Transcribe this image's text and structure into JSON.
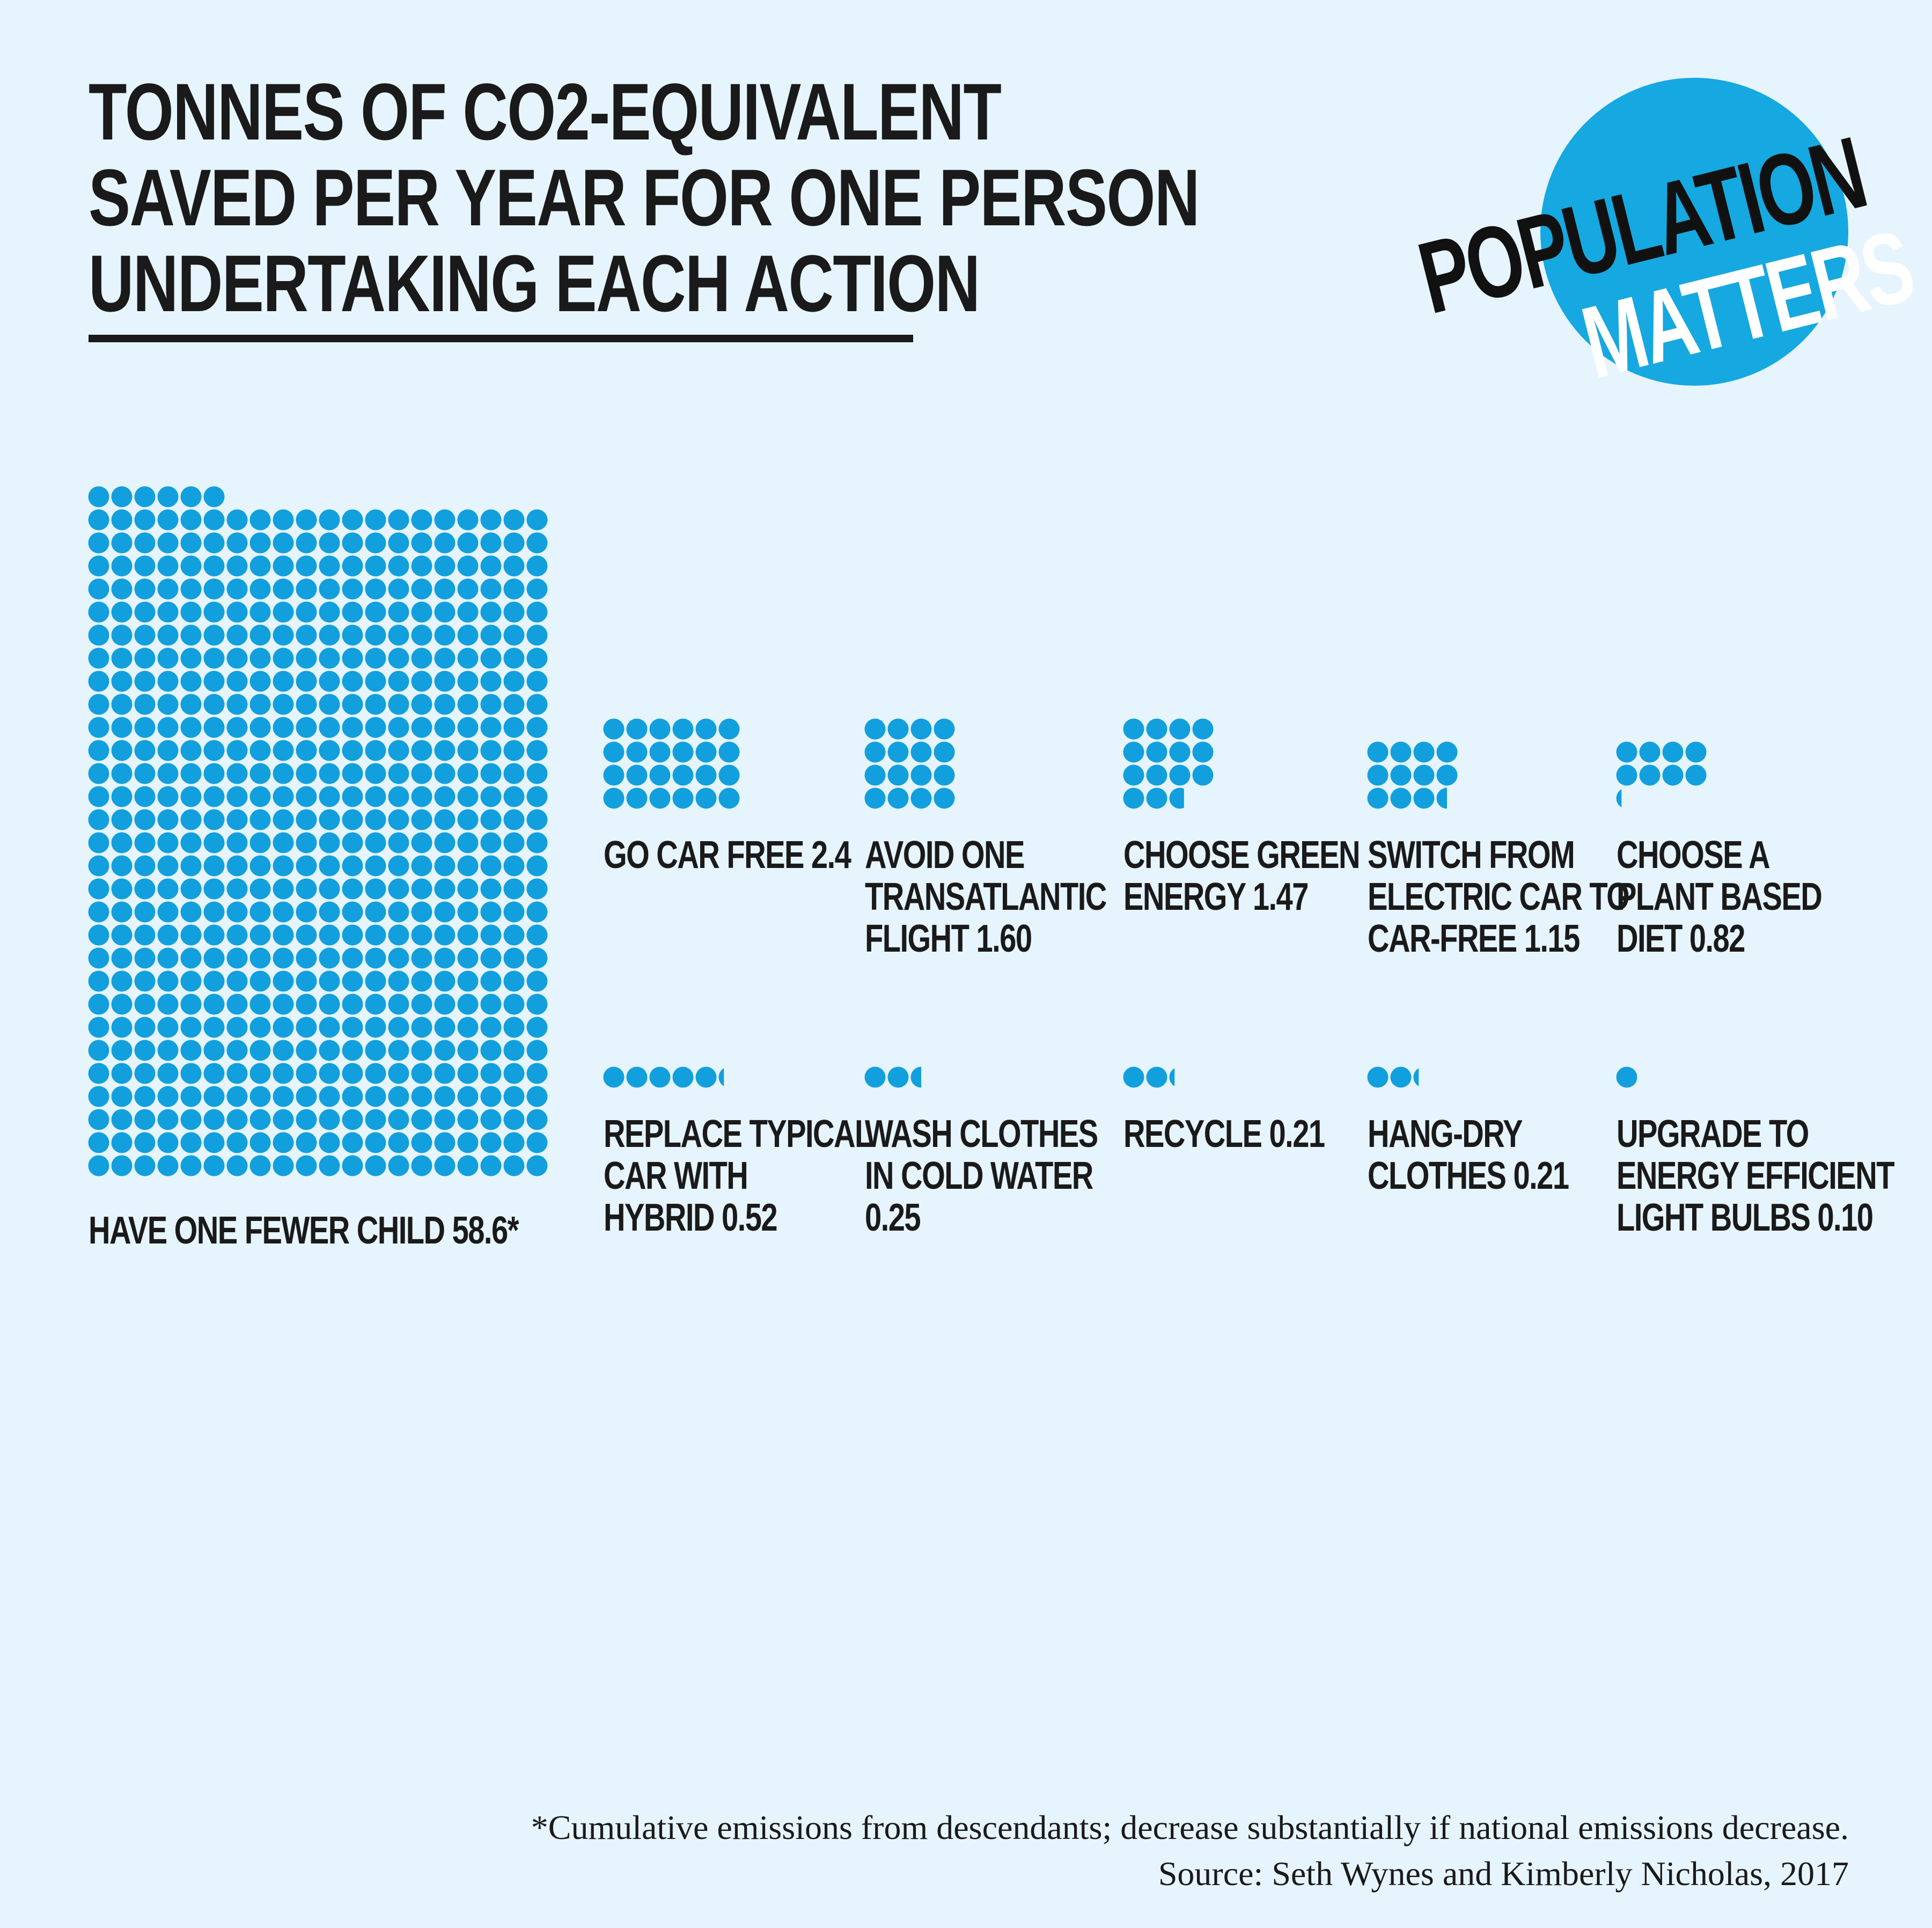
{
  "title": {
    "lines": [
      "TONNES OF CO2-EQUIVALENT",
      "SAVED PER YEAR FOR ONE PERSON",
      "UNDERTAKING EACH ACTION"
    ]
  },
  "logo": {
    "line1": "POPULATION",
    "line2": "MATTERS"
  },
  "chart_data": {
    "type": "pictogram",
    "title": "TONNES OF CO2-EQUIVALENT SAVED PER YEAR FOR ONE PERSON UNDERTAKING EACH ACTION",
    "unit_per_dot": 0.1,
    "color": "#129fdd",
    "items": [
      {
        "label": [
          "HAVE ONE FEWER CHILD 58.6*"
        ],
        "value": 58.6
      },
      {
        "label": [
          "GO CAR FREE 2.4"
        ],
        "value": 2.4
      },
      {
        "label": [
          "AVOID ONE",
          "TRANSATLANTIC",
          "FLIGHT 1.60"
        ],
        "value": 1.6
      },
      {
        "label": [
          "CHOOSE GREEN",
          "ENERGY 1.47"
        ],
        "value": 1.47
      },
      {
        "label": [
          "SWITCH FROM",
          "ELECTRIC CAR TO",
          "CAR-FREE 1.15"
        ],
        "value": 1.15
      },
      {
        "label": [
          "CHOOSE A",
          "PLANT BASED",
          "DIET 0.82"
        ],
        "value": 0.82
      },
      {
        "label": [
          "REPLACE TYPICAL",
          "CAR WITH",
          "HYBRID 0.52"
        ],
        "value": 0.52
      },
      {
        "label": [
          "WASH CLOTHES",
          "IN COLD WATER",
          "0.25"
        ],
        "value": 0.25
      },
      {
        "label": [
          "RECYCLE 0.21"
        ],
        "value": 0.21
      },
      {
        "label": [
          "HANG-DRY",
          "CLOTHES 0.21"
        ],
        "value": 0.21
      },
      {
        "label": [
          "UPGRADE TO",
          "ENERGY EFFICIENT",
          "LIGHT BULBS 0.10"
        ],
        "value": 0.1
      }
    ]
  },
  "footnote": {
    "note": "*Cumulative emissions from descendants; decrease substantially if national emissions decrease.",
    "source": "Source: Seth Wynes and Kimberly Nicholas, 2017"
  }
}
